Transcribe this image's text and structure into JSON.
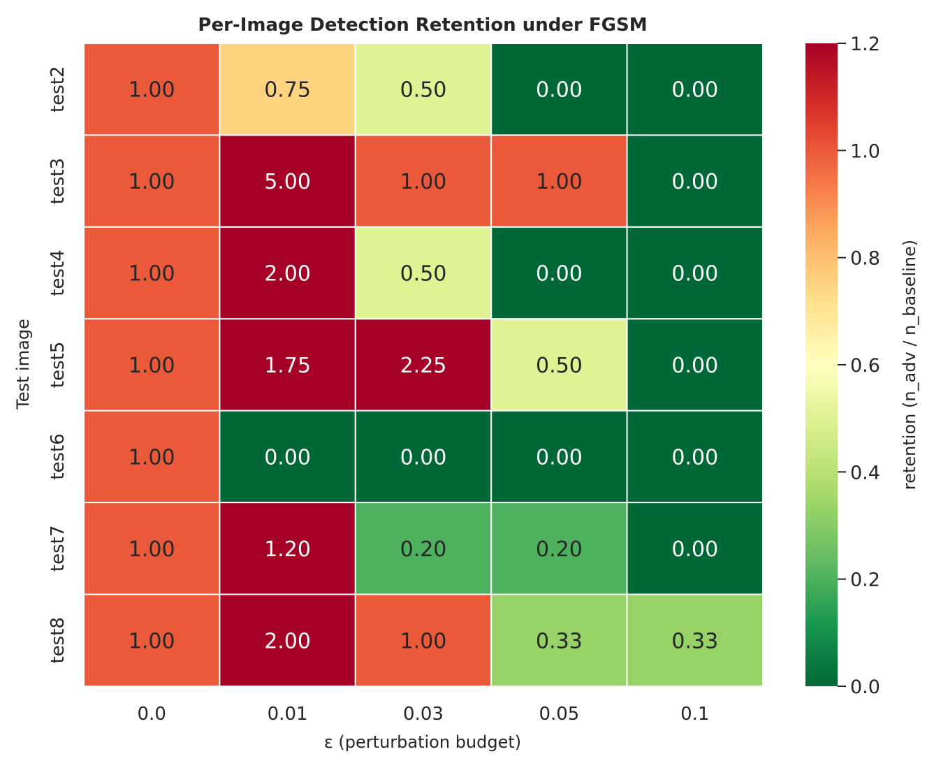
{
  "chart_data": {
    "type": "heatmap",
    "title": "Per-Image Detection Retention under FGSM",
    "xlabel": "ε (perturbation budget)",
    "ylabel": "Test image",
    "x_categories": [
      "0.0",
      "0.01",
      "0.03",
      "0.05",
      "0.1"
    ],
    "y_categories": [
      "test2",
      "test3",
      "test4",
      "test5",
      "test6",
      "test7",
      "test8"
    ],
    "values": [
      [
        1.0,
        0.75,
        0.5,
        0.0,
        0.0
      ],
      [
        1.0,
        5.0,
        1.0,
        1.0,
        0.0
      ],
      [
        1.0,
        2.0,
        0.5,
        0.0,
        0.0
      ],
      [
        1.0,
        1.75,
        2.25,
        0.5,
        0.0
      ],
      [
        1.0,
        0.0,
        0.0,
        0.0,
        0.0
      ],
      [
        1.0,
        1.2,
        0.2,
        0.2,
        0.0
      ],
      [
        1.0,
        2.0,
        1.0,
        0.33,
        0.33
      ]
    ],
    "annotation_format": "2 decimals",
    "colormap": "RdYlGn_r",
    "vmin": 0.0,
    "vmax": 1.2,
    "colorbar": {
      "label": "retention (n_adv / n_baseline)",
      "ticks": [
        "0.0",
        "0.2",
        "0.4",
        "0.6",
        "0.8",
        "1.0",
        "1.2"
      ],
      "tick_values": [
        0.0,
        0.2,
        0.4,
        0.6,
        0.8,
        1.0,
        1.2
      ]
    },
    "grid": false,
    "cell_border_color": "#ffffff",
    "colorbar_position": "right"
  }
}
